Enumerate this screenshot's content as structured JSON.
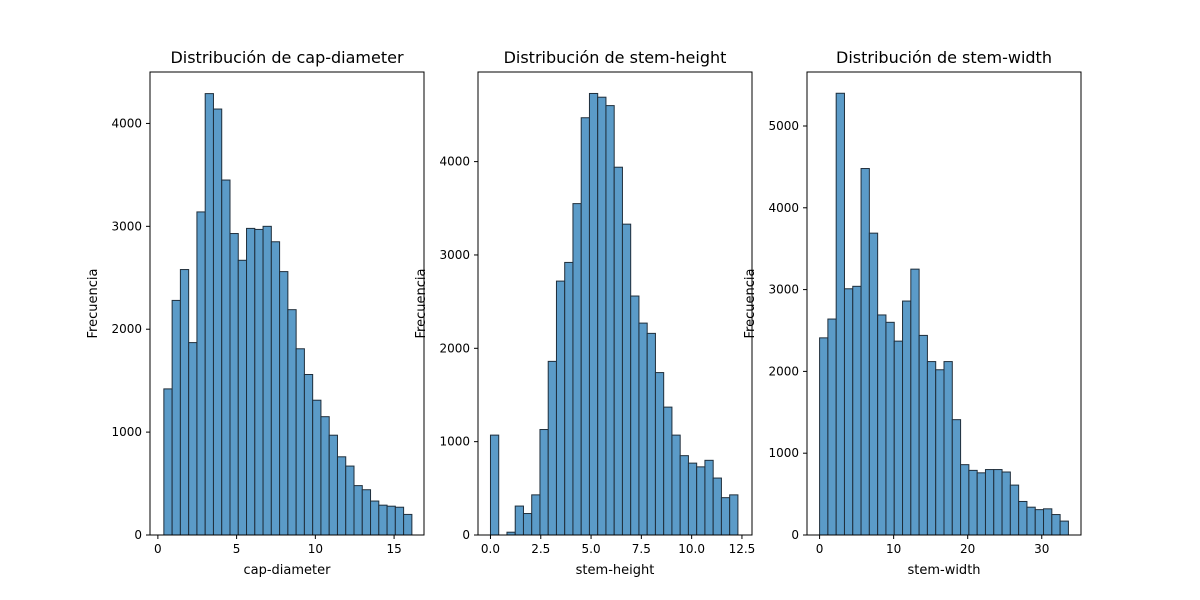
{
  "chart_data": [
    {
      "type": "bar",
      "title": "Distribución de cap-diameter",
      "xlabel": "cap-diameter",
      "ylabel": "Frecuencia",
      "xlim": [
        -0.5,
        16.9
      ],
      "ylim": [
        0,
        4500
      ],
      "xticks": [
        0,
        5,
        10,
        15
      ],
      "yticks": [
        0,
        1000,
        2000,
        3000,
        4000
      ],
      "bin_start": 0.38,
      "bin_width": 0.525,
      "values": [
        1420,
        2280,
        2580,
        1870,
        3140,
        4290,
        4140,
        3450,
        2930,
        2670,
        2980,
        2970,
        3000,
        2850,
        2560,
        2190,
        1810,
        1560,
        1310,
        1150,
        970,
        760,
        670,
        480,
        440,
        330,
        290,
        280,
        270,
        200
      ]
    },
    {
      "type": "bar",
      "title": "Distribución de stem-height",
      "xlabel": "stem-height",
      "ylabel": "Frecuencia",
      "xlim": [
        -0.62,
        13.0
      ],
      "ylim": [
        0,
        4960
      ],
      "xticks": [
        0.0,
        2.5,
        5.0,
        7.5,
        10.0,
        12.5
      ],
      "ytick_labels": [
        "0",
        "1000",
        "2000",
        "3000",
        "4000"
      ],
      "yticks": [
        0,
        1000,
        2000,
        3000,
        4000
      ],
      "bin_start": 0.0,
      "bin_width": 0.41,
      "values": [
        1070,
        0,
        30,
        310,
        230,
        430,
        1130,
        1860,
        2720,
        2920,
        3550,
        4470,
        4730,
        4690,
        4600,
        3940,
        3330,
        2560,
        2270,
        2160,
        1740,
        1370,
        1070,
        850,
        770,
        730,
        800,
        610,
        400,
        430
      ]
    },
    {
      "type": "bar",
      "title": "Distribución de stem-width",
      "xlabel": "stem-width",
      "ylabel": "Frecuencia",
      "xlim": [
        -1.7,
        35.3
      ],
      "ylim": [
        0,
        5660
      ],
      "xticks": [
        0,
        10,
        20,
        30
      ],
      "yticks": [
        0,
        1000,
        2000,
        3000,
        4000,
        5000
      ],
      "bin_start": 0.0,
      "bin_width": 1.12,
      "values": [
        2410,
        2640,
        5400,
        3010,
        3040,
        4480,
        3690,
        2690,
        2600,
        2370,
        2860,
        3250,
        2440,
        2120,
        2020,
        2120,
        1410,
        860,
        790,
        760,
        800,
        800,
        770,
        610,
        410,
        340,
        310,
        320,
        250,
        170
      ]
    }
  ],
  "colors": {
    "bar_fill": "#5b9bc8",
    "bar_edge": "#1f2e3b",
    "axes": "#000000",
    "background": "#ffffff"
  }
}
